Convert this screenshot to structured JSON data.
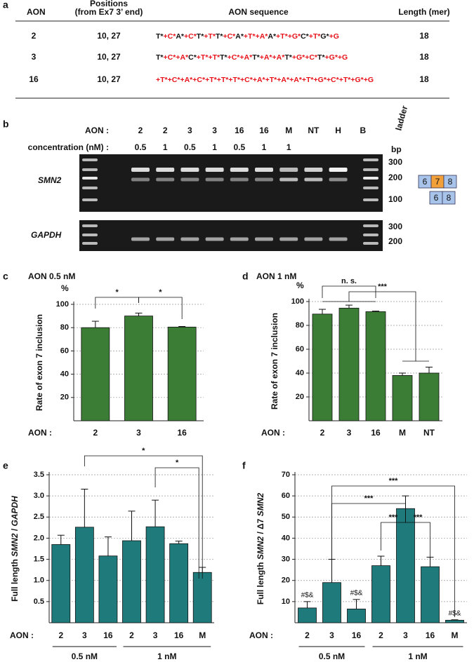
{
  "panel_labels": [
    "a",
    "b",
    "c",
    "d",
    "e",
    "f"
  ],
  "table": {
    "header": [
      "AON",
      [
        "Positions",
        "(from Ex7 3’ end)"
      ],
      "AON sequence",
      "Length (mer)"
    ],
    "lna_color": "#e8131b",
    "rows": [
      {
        "aon": "2",
        "positions": "10, 27",
        "sequence": [
          "T*",
          "+C*",
          "A*",
          "+C*",
          "T*",
          "+T*",
          "T*",
          "+C*",
          "A*",
          "+T*",
          "+A*",
          "A*",
          "+T*",
          "+G*",
          "C*",
          "+T*",
          "G*",
          "+G"
        ],
        "length": 18
      },
      {
        "aon": "3",
        "positions": "10, 27",
        "sequence": [
          "T*",
          "+C*",
          "+A*",
          "C*",
          "+T*",
          "+T*",
          "T*",
          "+C*",
          "+A*",
          "T*",
          "+A*",
          "+A*",
          "T*",
          "+G*",
          "+C*",
          "T*",
          "+G*",
          "+G"
        ],
        "length": 18
      },
      {
        "aon": "16",
        "positions": "10, 27",
        "sequence": [
          "+T*",
          "+C*",
          "+A*",
          "+C*",
          "+T*",
          "+T*",
          "+T*",
          "+C*",
          "+A*",
          "+T*",
          "+A*",
          "+A*",
          "+T*",
          "+G*",
          "+C*",
          "+T*",
          "+G*",
          "+G"
        ],
        "length": 18
      }
    ]
  },
  "gel": {
    "aon_label": "AON :",
    "lanes": [
      "2",
      "2",
      "3",
      "3",
      "16",
      "16",
      "M",
      "NT",
      "H",
      "B"
    ],
    "concentration_label": "concentration (nM) :",
    "concentrations": [
      0.5,
      1,
      0.5,
      1,
      0.5,
      1,
      1
    ],
    "genes": [
      "SMN2",
      "GAPDH"
    ],
    "ladder": "ladder",
    "bp": "bp",
    "markers_smn2": [
      300,
      200,
      100
    ],
    "markers_gapdh": [
      300,
      200
    ],
    "exons": [
      "6",
      "7",
      "8"
    ],
    "skipped_exons": [
      "6",
      "8"
    ]
  },
  "chart_data": [
    {
      "type": "bar",
      "title": "AON  0.5 nM",
      "y_label": [
        "Rate of exon 7 inclusion"
      ],
      "y_unit": "%",
      "x_label": "AON  :",
      "categories": [
        "2",
        "3",
        "16"
      ],
      "values": [
        80,
        90,
        80.5
      ],
      "errors": [
        5.5,
        2.5,
        0.5
      ],
      "color": "#3b7d34",
      "ylim": [
        0,
        100
      ],
      "yticks": [
        20,
        40,
        60,
        80,
        100
      ],
      "grid": true,
      "annotations": [
        "*",
        "*"
      ]
    },
    {
      "type": "bar",
      "title": "AON  1 nM",
      "y_label": [
        "Rate of exon 7 inclusion"
      ],
      "y_unit": "%",
      "x_label": "AON  :",
      "categories": [
        "2",
        "3",
        "16",
        "M",
        "NT"
      ],
      "values": [
        89.5,
        94.5,
        91.5,
        38,
        40
      ],
      "errors": [
        4,
        2.5,
        0.5,
        2,
        5
      ],
      "color": "#3b7d34",
      "ylim": [
        0,
        100
      ],
      "yticks": [
        20,
        40,
        60,
        80,
        100
      ],
      "grid": true,
      "annotations": [
        "n. s.",
        "***"
      ]
    },
    {
      "type": "bar",
      "y_label": [
        "Full length ",
        "SMN2",
        " / ",
        "GAPDH"
      ],
      "x_label": "AON :",
      "categories": [
        "2",
        "3",
        "16",
        "2",
        "3",
        "16",
        "M"
      ],
      "values": [
        1.85,
        2.26,
        1.58,
        1.94,
        2.27,
        1.87,
        1.19
      ],
      "errors": [
        0.22,
        0.9,
        0.45,
        0.7,
        0.63,
        0.06,
        0.12
      ],
      "color": "#1f7b7b",
      "ylim": [
        0,
        3.5
      ],
      "yticks": [
        0.5,
        {
          "value": 1,
          "label": "1.0"
        },
        1.5,
        {
          "value": 2,
          "label": "2.0"
        },
        2.5,
        {
          "value": 3,
          "label": "3.0"
        },
        3.5
      ],
      "grid": true,
      "group_labels": [
        "0.5 nM",
        "1 nM"
      ],
      "annotations": [
        "*",
        "*"
      ]
    },
    {
      "type": "bar",
      "y_label": [
        "Full length ",
        "SMN2",
        " / Δ7 ",
        "SMN2"
      ],
      "x_label": "AON :",
      "categories": [
        "2",
        "3",
        "16",
        "2",
        "3",
        "16",
        "M"
      ],
      "values": [
        7,
        19,
        6.5,
        27,
        54,
        26.5,
        1.2
      ],
      "errors": [
        3,
        11,
        4.5,
        4.5,
        6,
        4.5,
        0.2
      ],
      "color": "#1f7b7b",
      "ylim": [
        0,
        70
      ],
      "yticks": [
        10,
        20,
        30,
        40,
        50,
        60,
        70
      ],
      "grid": true,
      "group_labels": [
        "0.5 nM",
        "1 nM"
      ],
      "annotations": [
        "***",
        "***",
        "***",
        "***",
        "#$&",
        "#$&",
        "#$&"
      ]
    }
  ]
}
